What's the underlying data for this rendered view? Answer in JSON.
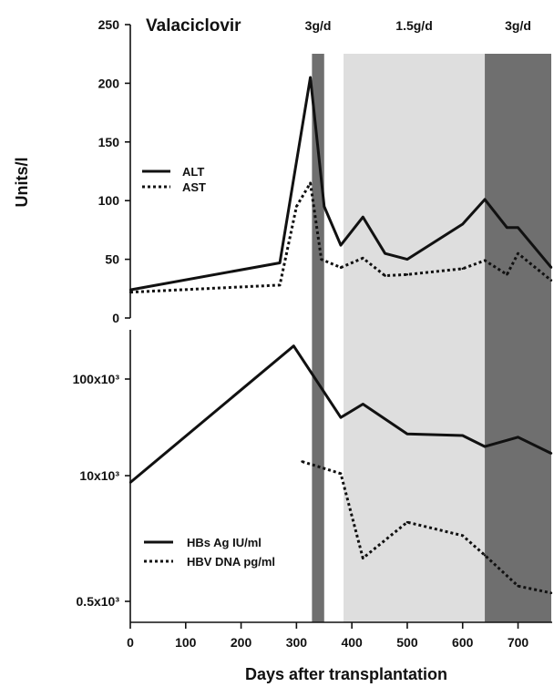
{
  "chart_data": [
    {
      "type": "line",
      "title": "Valaciclovir",
      "ylabel": "Units/l",
      "ylim": [
        0,
        250
      ],
      "yticks": [
        "0",
        "50",
        "100",
        "150",
        "200",
        "250"
      ],
      "treatment_periods": [
        {
          "label": "3g/d",
          "x_start": 328,
          "x_end": 350,
          "shade": "#6f6f6f"
        },
        {
          "label": "1.5g/d",
          "x_start": 385,
          "x_end": 640,
          "shade": "#dedede"
        },
        {
          "label": "3g/d",
          "x_start": 640,
          "x_end": 760,
          "shade": "#6f6f6f"
        }
      ],
      "legend_position": "left",
      "series": [
        {
          "name": "ALT",
          "style": "solid",
          "x": [
            0,
            270,
            325,
            350,
            380,
            420,
            460,
            500,
            600,
            640,
            680,
            700,
            760
          ],
          "y": [
            24,
            47,
            205,
            95,
            62,
            86,
            55,
            50,
            80,
            101,
            77,
            77,
            43
          ]
        },
        {
          "name": "AST",
          "style": "dotted",
          "x": [
            0,
            270,
            300,
            325,
            345,
            380,
            420,
            460,
            500,
            600,
            640,
            680,
            700,
            760
          ],
          "y": [
            22,
            28,
            95,
            115,
            50,
            43,
            51,
            36,
            37,
            42,
            49,
            37,
            55,
            32
          ]
        }
      ]
    },
    {
      "type": "line",
      "xlabel": "Days after transplantation",
      "xlim": [
        0,
        760
      ],
      "xticks": [
        "0",
        "100",
        "200",
        "300",
        "400",
        "500",
        "600",
        "700"
      ],
      "yscale": "log",
      "yticks": [
        "0.5x10³",
        "10x10³",
        "100x10³"
      ],
      "tick_values": [
        500,
        10000,
        100000
      ],
      "legend_position": "bottom-left",
      "series": [
        {
          "name": "HBs Ag IU/ml",
          "style": "solid",
          "x": [
            0,
            295,
            380,
            420,
            500,
            600,
            640,
            700,
            760
          ],
          "y": [
            8500,
            220000,
            40000,
            55000,
            27000,
            26000,
            20000,
            25000,
            17000
          ]
        },
        {
          "name": "HBV DNA pg/ml",
          "style": "dotted",
          "x": [
            310,
            380,
            420,
            500,
            600,
            640,
            700,
            760
          ],
          "y": [
            14000,
            10500,
            1400,
            3300,
            2400,
            1500,
            720,
            610
          ]
        }
      ]
    }
  ]
}
